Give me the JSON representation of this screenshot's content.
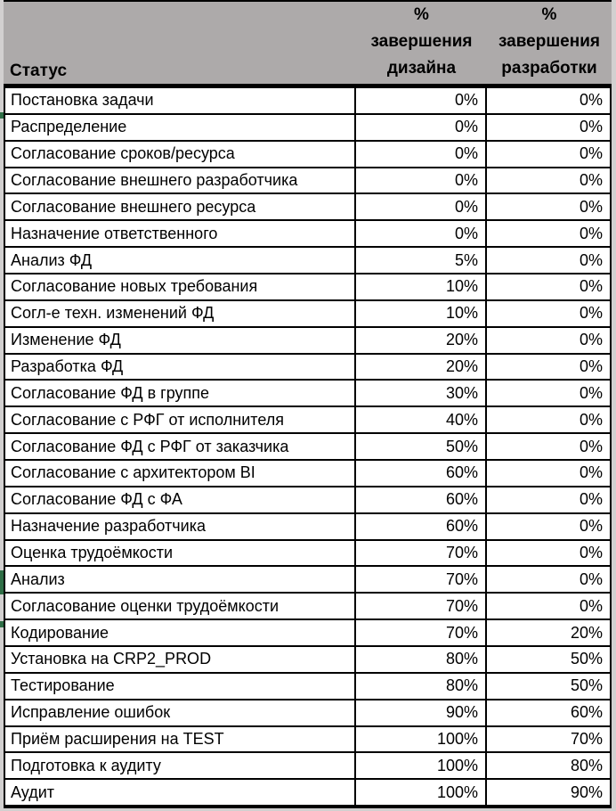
{
  "header": {
    "status_label": "Статус",
    "design_col": {
      "l1": "%",
      "l2": "завершения",
      "l3": "дизайна"
    },
    "dev_col": {
      "l1": "%",
      "l2": "завершения",
      "l3": "разработки"
    }
  },
  "rows": [
    {
      "status": "Постановка задачи",
      "design": "0%",
      "dev": "0%"
    },
    {
      "status": "Распределение",
      "design": "0%",
      "dev": "0%"
    },
    {
      "status": "Согласование сроков/ресурса",
      "design": "0%",
      "dev": "0%"
    },
    {
      "status": "Согласование внешнего разработчика",
      "design": "0%",
      "dev": "0%"
    },
    {
      "status": "Согласование внешнего ресурса",
      "design": "0%",
      "dev": "0%"
    },
    {
      "status": "Назначение ответственного",
      "design": "0%",
      "dev": "0%"
    },
    {
      "status": "Анализ ФД",
      "design": "5%",
      "dev": "0%"
    },
    {
      "status": "Согласование новых требования",
      "design": "10%",
      "dev": "0%"
    },
    {
      "status": "Согл-е техн. изменений ФД",
      "design": "10%",
      "dev": "0%"
    },
    {
      "status": "Изменение ФД",
      "design": "20%",
      "dev": "0%"
    },
    {
      "status": "Разработка ФД",
      "design": "20%",
      "dev": "0%"
    },
    {
      "status": "Согласование ФД в группе",
      "design": "30%",
      "dev": "0%"
    },
    {
      "status": "Согласование с РФГ от исполнителя",
      "design": "40%",
      "dev": "0%"
    },
    {
      "status": "Согласование ФД с РФГ от заказчика",
      "design": "50%",
      "dev": "0%"
    },
    {
      "status": "Согласование с архитектором BI",
      "design": "60%",
      "dev": "0%"
    },
    {
      "status": "Согласование ФД с ФА",
      "design": "60%",
      "dev": "0%"
    },
    {
      "status": "Назначение разработчика",
      "design": "60%",
      "dev": "0%"
    },
    {
      "status": "Оценка трудоёмкости",
      "design": "70%",
      "dev": "0%"
    },
    {
      "status": "Анализ",
      "design": "70%",
      "dev": "0%"
    },
    {
      "status": "Согласование оценки трудоёмкости",
      "design": "70%",
      "dev": "0%"
    },
    {
      "status": "Кодирование",
      "design": "70%",
      "dev": "20%"
    },
    {
      "status": "Установка на CRP2_PROD",
      "design": "80%",
      "dev": "50%"
    },
    {
      "status": "Тестирование",
      "design": "80%",
      "dev": "50%"
    },
    {
      "status": "Исправление ошибок",
      "design": "90%",
      "dev": "60%"
    },
    {
      "status": "Приём расширения на TEST",
      "design": "100%",
      "dev": "70%"
    },
    {
      "status": "Подготовка к аудиту",
      "design": "100%",
      "dev": "80%"
    },
    {
      "status": "Аудит",
      "design": "100%",
      "dev": "90%"
    }
  ],
  "colors": {
    "header_bg": "#adaaaa",
    "page_margin_bg": "#d2d0d0",
    "cell_bg": "#ffffff",
    "border": "#000000",
    "row_marker_green": "#2e6e46"
  }
}
